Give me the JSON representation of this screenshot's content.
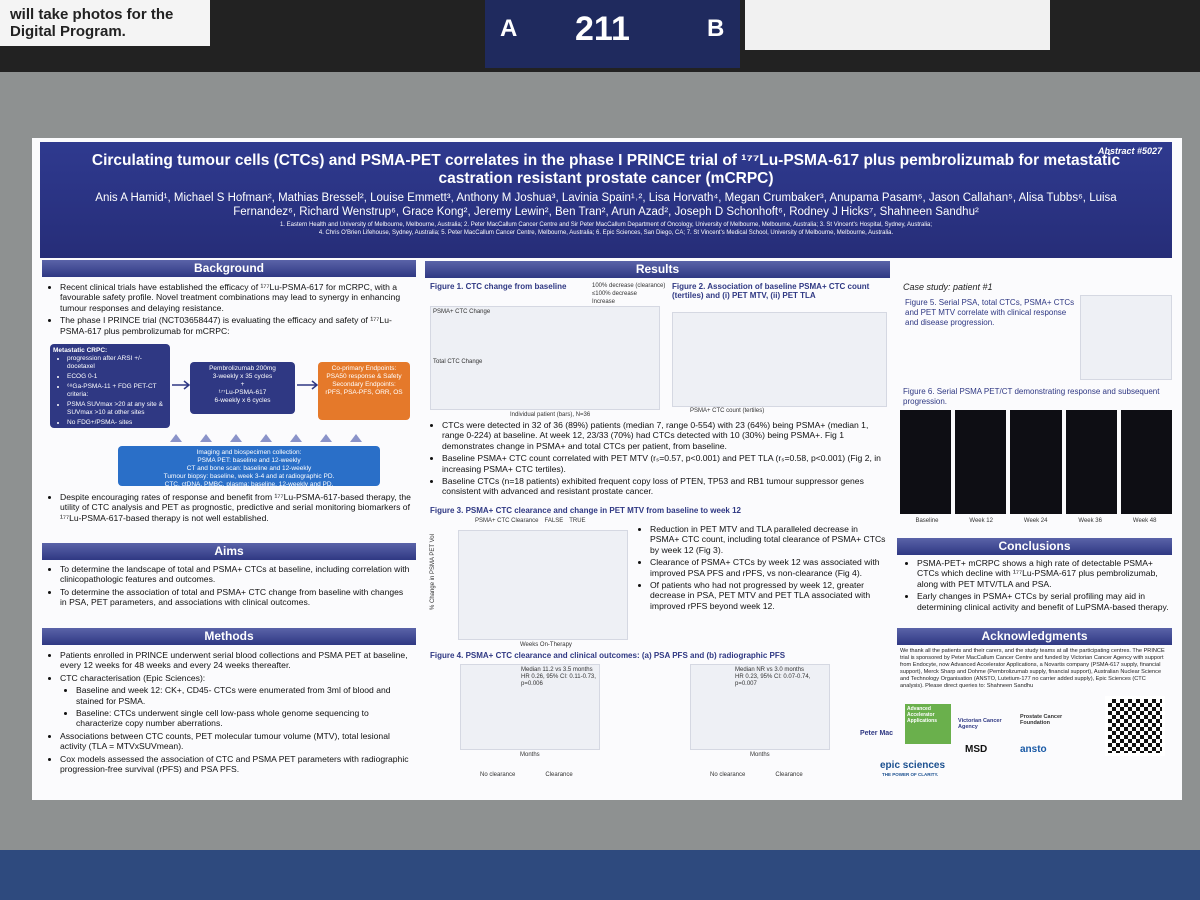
{
  "booth": {
    "notice": "will take photos for the Digital Program.",
    "left": "A",
    "number": "211",
    "right": "B"
  },
  "poster": {
    "abstract": "Abstract #5027",
    "title": "Circulating tumour cells (CTCs) and PSMA-PET correlates in the phase I PRINCE trial of ¹⁷⁷Lu-PSMA-617 plus pembrolizumab for metastatic castration resistant prostate cancer (mCRPC)",
    "authors": "Anis A Hamid¹, Michael S Hofman², Mathias Bressel², Louise Emmett³, Anthony M Joshua³, Lavinia Spain¹˒², Lisa Horvath⁴, Megan Crumbaker³, Anupama Pasam⁶, Jason Callahan⁵, Alisa Tubbs⁶, Luisa Fernandez⁶, Richard Wenstrup⁶, Grace Kong², Jeremy Lewin², Ben Tran², Arun Azad², Joseph D Schonhoft⁶, Rodney J Hicks⁷, Shahneen Sandhu²",
    "affiliations": [
      "1. Eastern Health and University of Melbourne, Melbourne, Australia; 2. Peter MacCallum Cancer Centre and Sir Peter MacCallum Department of Oncology, University of Melbourne, Melbourne, Australia; 3. St Vincent's Hospital, Sydney, Australia;",
      "4. Chris O'Brien Lifehouse, Sydney, Australia; 5. Peter MacCallum Cancer Centre, Melbourne, Australia; 6. Epic Sciences, San Diego, CA; 7. St Vincent's Medical School, University of Melbourne, Melbourne, Australia."
    ],
    "background": {
      "heading": "Background",
      "points": [
        "Recent clinical trials have established the efficacy of ¹⁷⁷Lu-PSMA-617 for mCRPC, with a favourable safety profile. Novel treatment combinations may lead to synergy in enhancing tumour responses and delaying resistance.",
        "The phase I PRINCE trial (NCT03658447) is evaluating the efficacy and safety of ¹⁷⁷Lu-PSMA-617 plus pembrolizumab for mCRPC:"
      ],
      "eligibility": {
        "heading": "Metastatic CRPC:",
        "items": [
          "progression after ARSI +/- docetaxel",
          "ECOG 0-1",
          "⁶⁸Ga-PSMA-11 + FDG PET-CT criteria:",
          "PSMA SUVmax >20 at any site & SUVmax >10 at other sites",
          "No FDG+/PSMA- sites"
        ]
      },
      "treatment": [
        "Pembrolizumab 200mg",
        "3-weekly x 35 cycles",
        "+",
        "¹⁷⁷Lu-PSMA-617",
        "6-weekly x 6 cycles"
      ],
      "endpoints": [
        "Co-primary Endpoints:",
        "PSA50 response & Safety",
        "Secondary Endpoints:",
        "rPFS, PSA-PFS, ORR, OS"
      ],
      "imaging": [
        "Imaging and biospecimen collection:",
        "PSMA PET: baseline and 12-weekly",
        "CT and bone scan: baseline and 12-weekly",
        "Tumour biopsy: baseline, week 3-4 and at radiographic PD.",
        "CTC, ctDNA, PMBC, plasma: baseline, 12-weekly and PD."
      ],
      "points_after": [
        "Despite encouraging rates of response and benefit from ¹⁷⁷Lu-PSMA-617-based therapy, the utility of CTC analysis and PET as prognostic, predictive and serial monitoring biomarkers of ¹⁷⁷Lu-PSMA-617-based therapy is not well established."
      ]
    },
    "aims": {
      "heading": "Aims",
      "points": [
        "To determine the landscape of total and PSMA+ CTCs at baseline, including correlation with clinicopathologic features and outcomes.",
        "To determine the association of total and PSMA+ CTC change from baseline with changes in PSA, PET parameters, and associations with clinical outcomes."
      ]
    },
    "methods": {
      "heading": "Methods",
      "points": [
        "Patients enrolled in PRINCE underwent serial blood collections and PSMA PET at baseline, every 12 weeks for 48 weeks and every 24 weeks thereafter.",
        "CTC characterisation (Epic Sciences):"
      ],
      "ctc_points": [
        "Baseline and week 12: CK+, CD45- CTCs were enumerated from 3ml of blood and stained for PSMA.",
        "Baseline: CTCs underwent single cell low-pass whole genome sequencing to characterize copy number aberrations."
      ],
      "points_after": [
        "Associations between CTC counts, PET molecular tumour volume (MTV), total lesional activity (TLA = MTVxSUVmean).",
        "Cox models assessed the association of CTC and PSMA PET parameters with radiographic progression-free survival (rPFS) and PSA PFS."
      ]
    },
    "results": {
      "heading": "Results",
      "fig1": {
        "title": "Figure 1. CTC change from baseline",
        "legend": [
          "100% decrease (clearance)",
          "≤100% decrease",
          "Increase"
        ],
        "panels": [
          "PSMA+ CTC Change",
          "Total CTC Change"
        ],
        "xlabel": "Individual patient (bars), N=36"
      },
      "fig2": {
        "title": "Figure 2. Association of baseline PSMA+ CTC count (tertiles) and (i) PET MTV, (ii) PET TLA",
        "xlabel": "PSMA+ CTC count (tertiles)"
      },
      "points": [
        "CTCs were detected in 32 of 36 (89%) patients (median 7, range 0-554) with 23 (64%) being PSMA+ (median 1, range 0-224) at baseline. At week 12, 23/33 (70%) had CTCs detected with 10 (30%) being PSMA+. Fig 1 demonstrates change in PSMA+ and total CTCs per patient, from baseline.",
        "Baseline PSMA+ CTC count correlated with PET MTV (rₛ=0.57, p<0.001) and PET TLA (rₛ=0.58, p<0.001) (Fig 2, in increasing PSMA+ CTC tertiles).",
        "Baseline CTCs (n=18 patients) exhibited frequent copy loss of PTEN, TP53 and RB1 tumour suppressor genes consistent with advanced and resistant prostate cancer."
      ],
      "fig3": {
        "title": "Figure 3. PSMA+ CTC clearance and change in PET MTV from baseline to week 12",
        "legend": [
          "PSMA+ CTC Clearance",
          "FALSE",
          "TRUE"
        ],
        "ylabel": "% Change in PSMA PET Vol",
        "xlabel": "Weeks On-Therapy"
      },
      "points3": [
        "Reduction in PET MTV and TLA paralleled decrease in PSMA+ CTC count, including total clearance of PSMA+ CTCs by week 12 (Fig 3).",
        "Clearance of PSMA+ CTCs by week 12 was associated with improved PSA PFS and rPFS, vs non-clearance (Fig 4).",
        "Of patients who had not progressed by week 12, greater decrease in PSA, PET MTV and PET TLA associated with improved rPFS beyond week 12."
      ],
      "fig4": {
        "title": "Figure 4. PSMA+ CTC clearance and clinical outcomes: (a) PSA PFS and (b) radiographic PFS",
        "a": [
          "Median 11.2 vs 3.5 months",
          "HR 0.26, 95% CI: 0.11-0.73,",
          "p=0.006"
        ],
        "b": [
          "Median NR vs 3.0 months",
          "HR 0.23, 95% CI: 0.07-0.74,",
          "p=0.007"
        ],
        "xlabel": "Months",
        "legend": [
          "No clearance",
          "Clearance"
        ]
      }
    },
    "case": {
      "heading": "Case study: patient #1",
      "fig5": "Figure 5. Serial PSA, total CTCs, PSMA+ CTCs and PET MTV correlate with clinical response and disease progression.",
      "fig6": "Figure 6. Serial PSMA PET/CT demonstrating response and subsequent progression.",
      "timepoints": [
        "Baseline",
        "Week 12",
        "Week 24",
        "Week 36",
        "Week 48"
      ]
    },
    "conclusions": {
      "heading": "Conclusions",
      "points": [
        "PSMA-PET+ mCRPC shows a high rate of detectable PSMA+ CTCs which decline with ¹⁷⁷Lu-PSMA-617 plus pembrolizumab, along with PET MTV/TLA and PSA.",
        "Early changes in PSMA+ CTCs by serial profiling may aid in determining clinical activity and benefit of LuPSMA-based therapy."
      ]
    },
    "acknowledgments": {
      "heading": "Acknowledgments",
      "text": "We thank all the patients and their carers, and the study teams at all the participating centres. The PRINCE trial is sponsored by Peter MacCallum Cancer Centre and funded by Victorian Cancer Agency with support from Endocyte, now Advanced Accelerator Applications, a Novartis company (PSMA-617 supply, financial support), Merck Sharp and Dohme (Pembrolizumab supply, financial support), Australian Nuclear Science and Technology Organisation (ANSTO, Lutetium-177 no carrier added supply), Epic Sciences (CTC analysis). Please direct queries to: Shahneen Sandhu"
    },
    "logos": [
      "Peter Mac",
      "Advanced Accelerator Applications",
      "Victorian Cancer Agency",
      "Prostate Cancer Foundation",
      "MSD",
      "ansto",
      "epic sciences",
      "THE POWER OF CLARITY."
    ]
  }
}
